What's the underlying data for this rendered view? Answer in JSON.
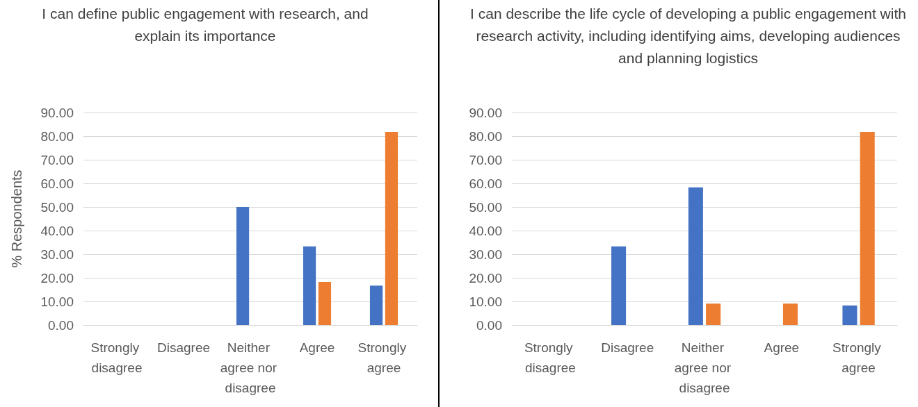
{
  "chart_data": [
    {
      "type": "bar",
      "title": "I can define public engagement with research, and explain its importance",
      "ylabel": "% Respondents",
      "categories": [
        "Strongly disagree",
        "Disagree",
        "Neither agree nor disagree",
        "Agree",
        "Strongly agree"
      ],
      "series": [
        {
          "color": "#4472c4",
          "values": [
            0,
            0,
            50,
            33.3,
            16.7
          ]
        },
        {
          "color": "#ed7d31",
          "values": [
            0,
            0,
            0,
            18.2,
            81.8
          ]
        }
      ],
      "ylim": [
        0,
        90
      ],
      "yticks": [
        {
          "value": 0,
          "label": "0.00"
        },
        {
          "value": 10,
          "label": "10.00"
        },
        {
          "value": 20,
          "label": "20.00"
        },
        {
          "value": 30,
          "label": "30.00"
        },
        {
          "value": 40,
          "label": "40.00"
        },
        {
          "value": 50,
          "label": "50.00"
        },
        {
          "value": 60,
          "label": "60.00"
        },
        {
          "value": 70,
          "label": "70.00"
        },
        {
          "value": 80,
          "label": "80.00"
        },
        {
          "value": 90,
          "label": "90.00"
        }
      ],
      "grid": "y"
    },
    {
      "type": "bar",
      "title": "I can describe the life cycle of developing a public engagement with research activity, including identifying aims, developing audiences and planning logistics",
      "categories": [
        "Strongly disagree",
        "Disagree",
        "Neither agree nor disagree",
        "Agree",
        "Strongly agree"
      ],
      "series": [
        {
          "color": "#4472c4",
          "values": [
            0,
            33.3,
            58.3,
            0,
            8.3
          ]
        },
        {
          "color": "#ed7d31",
          "values": [
            0,
            0,
            9.1,
            9.1,
            81.8
          ]
        }
      ],
      "ylim": [
        0,
        90
      ],
      "yticks": [
        {
          "value": 0,
          "label": "0.00"
        },
        {
          "value": 10,
          "label": "10.00"
        },
        {
          "value": 20,
          "label": "20.00"
        },
        {
          "value": 30,
          "label": "30.00"
        },
        {
          "value": 40,
          "label": "40.00"
        },
        {
          "value": 50,
          "label": "50.00"
        },
        {
          "value": 60,
          "label": "60.00"
        },
        {
          "value": 70,
          "label": "70.00"
        },
        {
          "value": 80,
          "label": "80.00"
        },
        {
          "value": 90,
          "label": "90.00"
        }
      ],
      "grid": "y"
    }
  ]
}
